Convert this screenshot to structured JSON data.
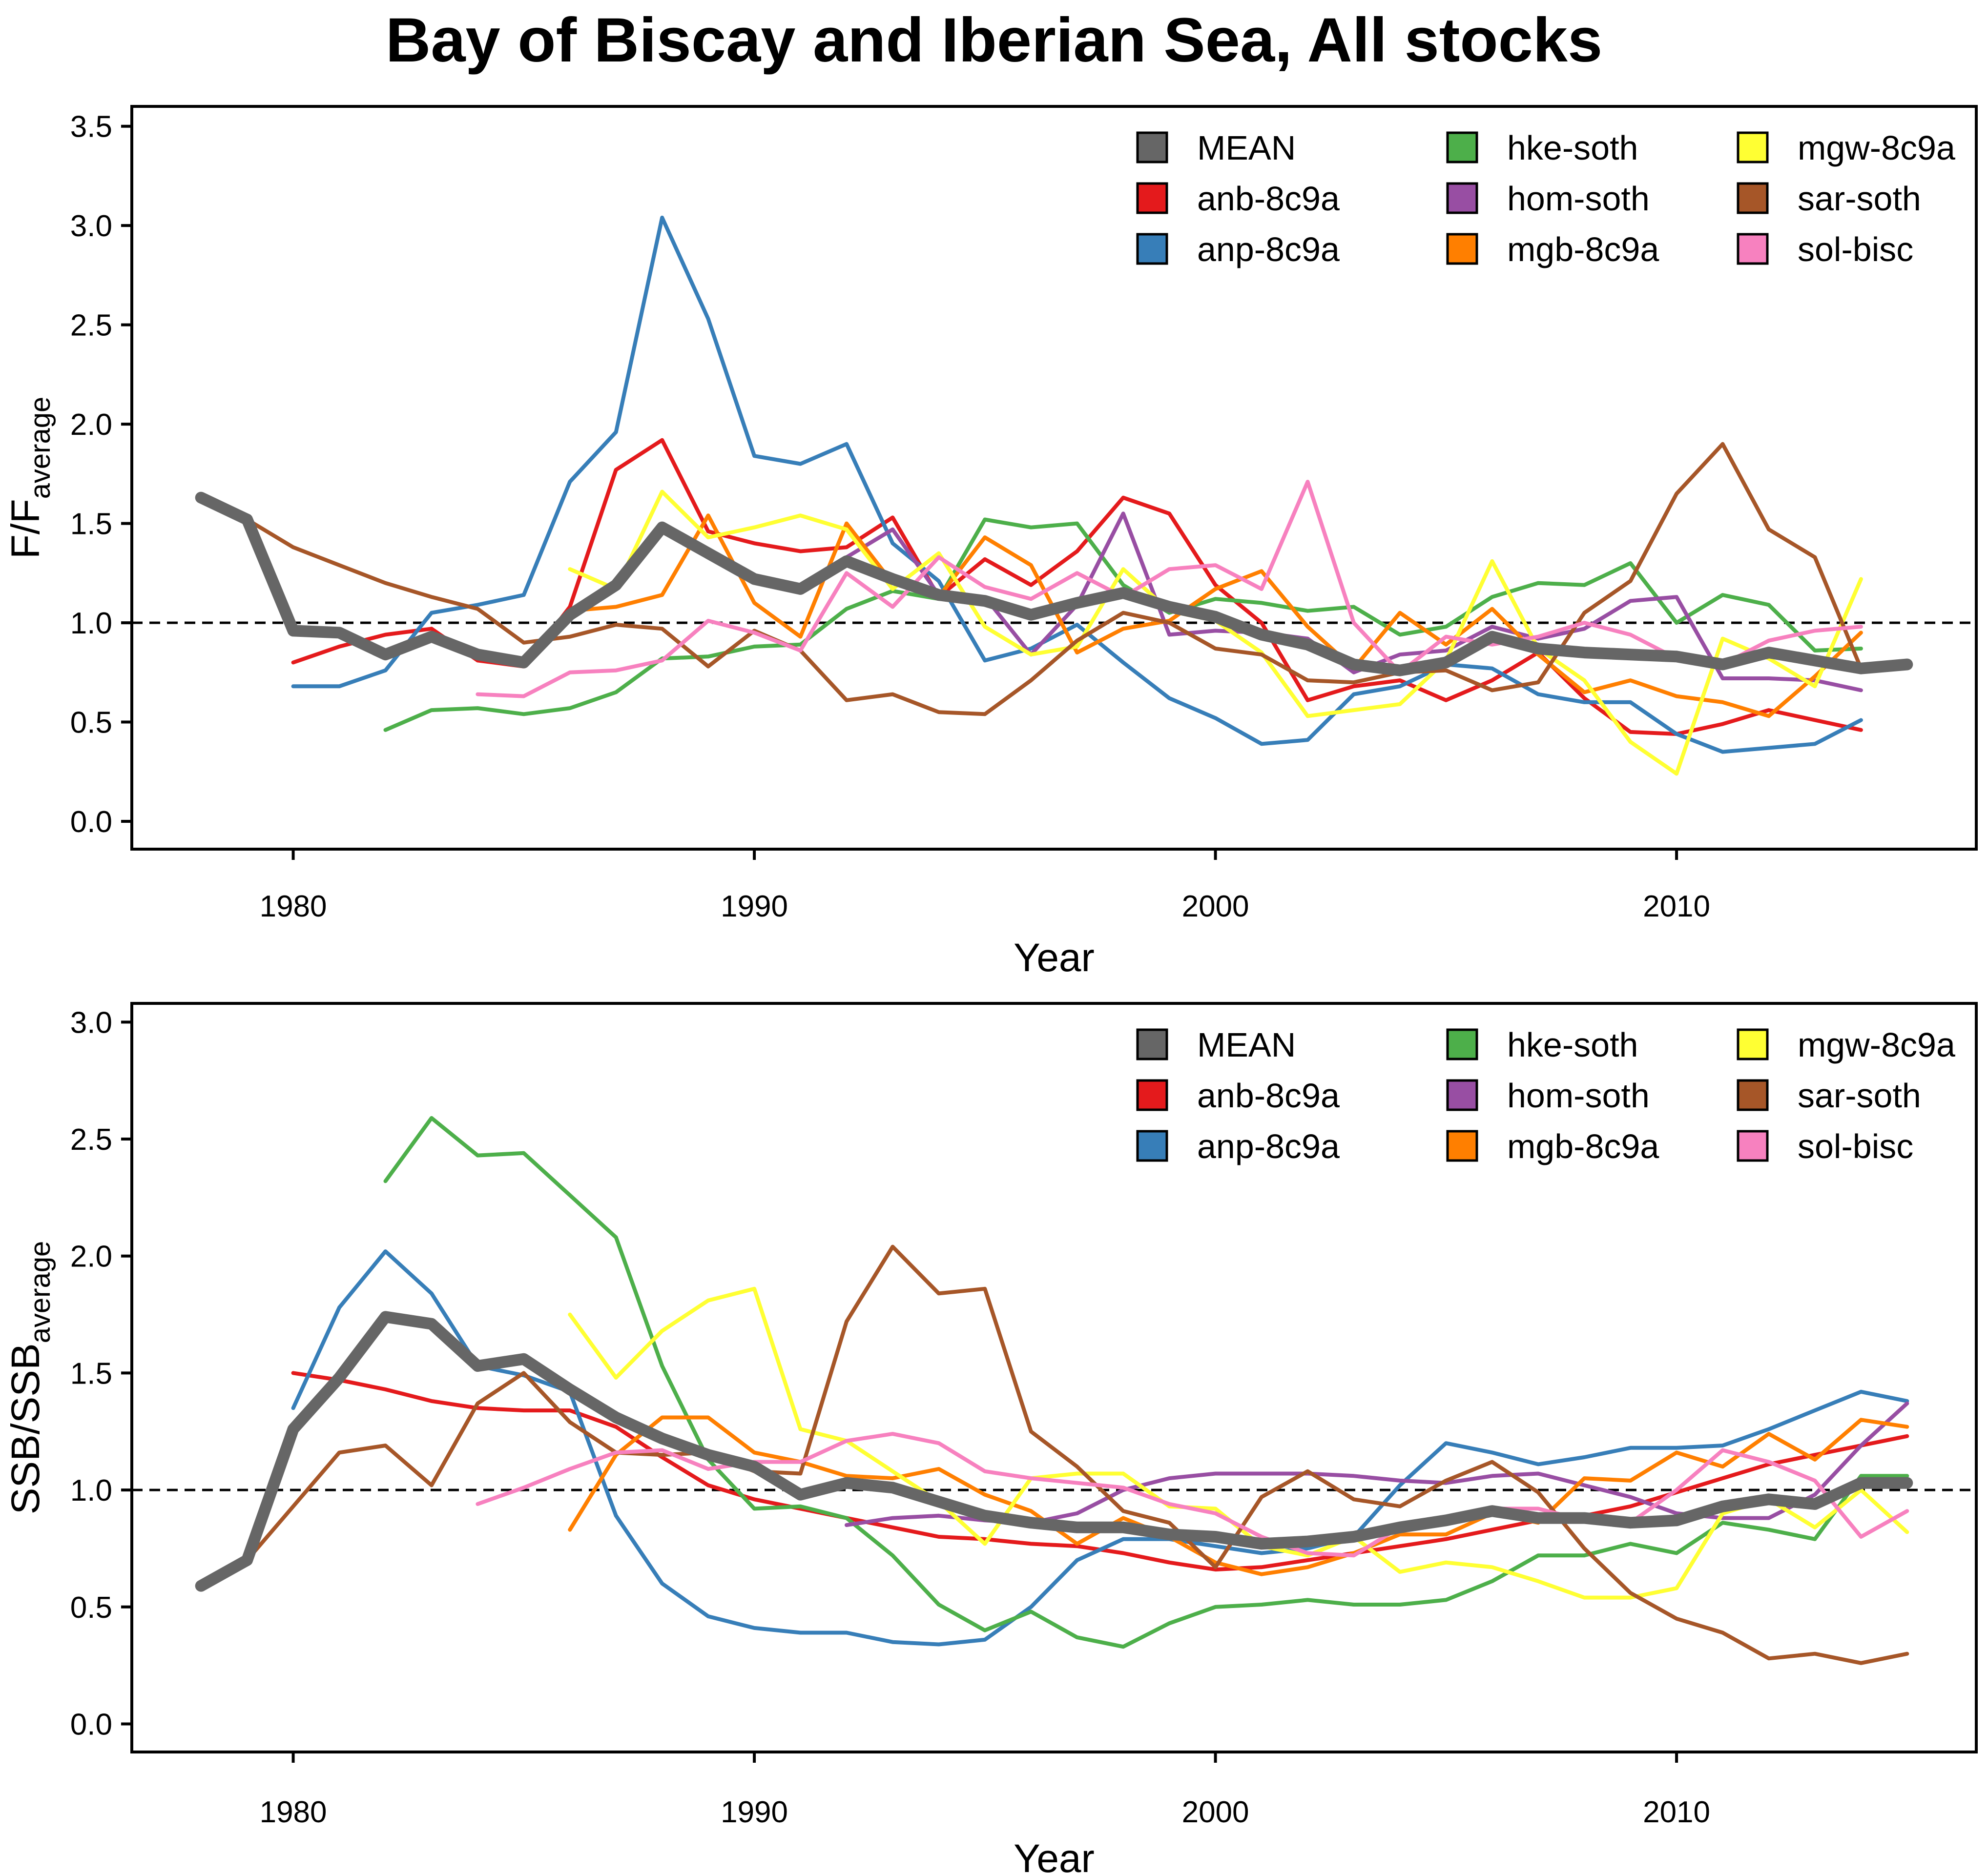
{
  "title": "Bay of Biscay and Iberian Sea, All stocks",
  "chart_data": [
    {
      "type": "line",
      "xlabel": "Year",
      "ylabel_main": "F/F",
      "ylabel_sub": "average",
      "xlim": [
        1976.5,
        2016.5
      ],
      "ylim": [
        -0.14,
        3.6
      ],
      "xticks": [
        1980,
        1990,
        2000,
        2010
      ],
      "yticks": [
        0.0,
        0.5,
        1.0,
        1.5,
        2.0,
        2.5,
        3.0,
        3.5
      ],
      "ytick_labels": [
        "0.0",
        "0.5",
        "1.0",
        "1.5",
        "2.0",
        "2.5",
        "3.0",
        "3.5"
      ],
      "reference_line": 1.0,
      "legend_position": "top-right",
      "series": [
        {
          "name": "anb-8c9a",
          "color": "#e41a1c",
          "x_start": 1980,
          "values": [
            0.8,
            0.88,
            0.94,
            0.97,
            0.81,
            0.78,
            1.08,
            1.77,
            1.92,
            1.46,
            1.4,
            1.36,
            1.38,
            1.53,
            1.13,
            1.32,
            1.19,
            1.36,
            1.63,
            1.55,
            1.19,
            1.0,
            0.61,
            0.68,
            0.71,
            0.61,
            0.71,
            0.85,
            0.62,
            0.45,
            0.44,
            0.49,
            0.56,
            0.51,
            0.46
          ]
        },
        {
          "name": "anp-8c9a",
          "color": "#377eb8",
          "x_start": 1980,
          "values": [
            0.68,
            0.68,
            0.76,
            1.05,
            1.09,
            1.14,
            1.71,
            1.96,
            3.04,
            2.53,
            1.84,
            1.8,
            1.9,
            1.4,
            1.21,
            0.81,
            0.87,
            0.99,
            0.8,
            0.62,
            0.52,
            0.39,
            0.41,
            0.64,
            0.68,
            0.79,
            0.77,
            0.64,
            0.6,
            0.6,
            0.44,
            0.35,
            0.37,
            0.39,
            0.51
          ]
        },
        {
          "name": "hke-soth",
          "color": "#4daf4a",
          "x_start": 1982,
          "values": [
            0.46,
            0.56,
            0.57,
            0.54,
            0.57,
            0.65,
            0.82,
            0.83,
            0.88,
            0.89,
            1.07,
            1.16,
            1.12,
            1.52,
            1.48,
            1.5,
            1.19,
            1.05,
            1.12,
            1.1,
            1.06,
            1.08,
            0.94,
            0.98,
            1.13,
            1.2,
            1.19,
            1.3,
            1.0,
            1.14,
            1.09,
            0.86,
            0.87
          ]
        },
        {
          "name": "hom-soth",
          "color": "#984ea3",
          "x_start": 1992,
          "values": [
            1.33,
            1.47,
            1.14,
            1.13,
            0.84,
            1.09,
            1.55,
            0.94,
            0.96,
            0.95,
            0.92,
            0.75,
            0.84,
            0.86,
            0.98,
            0.92,
            0.97,
            1.11,
            1.13,
            0.72,
            0.72,
            0.71,
            0.66
          ]
        },
        {
          "name": "mgb-8c9a",
          "color": "#ff7f00",
          "x_start": 1986,
          "values": [
            1.06,
            1.08,
            1.14,
            1.54,
            1.1,
            0.93,
            1.5,
            1.2,
            1.13,
            1.43,
            1.29,
            0.85,
            0.97,
            1.01,
            1.17,
            1.26,
            0.98,
            0.77,
            1.05,
            0.89,
            1.07,
            0.84,
            0.65,
            0.71,
            0.63,
            0.6,
            0.53,
            0.73,
            0.95
          ]
        },
        {
          "name": "mgw-8c9a",
          "color": "#ffff33",
          "x_start": 1986,
          "values": [
            1.27,
            1.17,
            1.66,
            1.43,
            1.48,
            1.54,
            1.47,
            1.17,
            1.35,
            0.98,
            0.84,
            0.88,
            1.27,
            1.06,
            1.01,
            0.85,
            0.53,
            0.56,
            0.59,
            0.81,
            1.31,
            0.87,
            0.71,
            0.4,
            0.24,
            0.92,
            0.82,
            0.68,
            1.22
          ]
        },
        {
          "name": "sar-soth",
          "color": "#a65628",
          "x_start": 1978,
          "values": [
            1.63,
            1.52,
            1.38,
            1.29,
            1.2,
            1.13,
            1.07,
            0.9,
            0.93,
            0.99,
            0.97,
            0.78,
            0.96,
            0.86,
            0.61,
            0.64,
            0.55,
            0.54,
            0.71,
            0.91,
            1.05,
            1.0,
            0.87,
            0.84,
            0.71,
            0.7,
            0.75,
            0.76,
            0.66,
            0.7,
            1.05,
            1.21,
            1.65,
            1.9,
            1.47,
            1.33,
            0.77
          ]
        },
        {
          "name": "sol-bisc",
          "color": "#f781bf",
          "x_start": 1984,
          "values": [
            0.64,
            0.63,
            0.75,
            0.76,
            0.81,
            1.01,
            0.95,
            0.86,
            1.25,
            1.08,
            1.33,
            1.18,
            1.12,
            1.25,
            1.13,
            1.27,
            1.29,
            1.17,
            1.71,
            1.0,
            0.75,
            0.93,
            0.89,
            0.93,
            1.0,
            0.94,
            0.82,
            0.79,
            0.91,
            0.96,
            0.98
          ]
        },
        {
          "name": "MEAN",
          "color": "#666666",
          "x_start": 1978,
          "values": [
            1.63,
            1.52,
            0.96,
            0.95,
            0.84,
            0.93,
            0.84,
            0.8,
            1.04,
            1.19,
            1.48,
            1.35,
            1.22,
            1.17,
            1.31,
            1.22,
            1.14,
            1.11,
            1.04,
            1.1,
            1.15,
            1.08,
            1.03,
            0.94,
            0.89,
            0.79,
            0.76,
            0.8,
            0.93,
            0.87,
            0.85,
            0.84,
            0.83,
            0.79,
            0.85,
            0.81,
            0.77,
            0.79
          ]
        }
      ]
    },
    {
      "type": "line",
      "xlabel": "Year",
      "ylabel_main": "SSB/SSB",
      "ylabel_sub": "average",
      "xlim": [
        1976.5,
        2016.5
      ],
      "ylim": [
        -0.12,
        3.08
      ],
      "xticks": [
        1980,
        1990,
        2000,
        2010
      ],
      "yticks": [
        0.0,
        0.5,
        1.0,
        1.5,
        2.0,
        2.5,
        3.0
      ],
      "ytick_labels": [
        "0.0",
        "0.5",
        "1.0",
        "1.5",
        "2.0",
        "2.5",
        "3.0"
      ],
      "reference_line": 1.0,
      "legend_position": "top-right",
      "series": [
        {
          "name": "anb-8c9a",
          "color": "#e41a1c",
          "x_start": 1980,
          "values": [
            1.5,
            1.47,
            1.43,
            1.38,
            1.35,
            1.34,
            1.34,
            1.27,
            1.14,
            1.02,
            0.96,
            0.92,
            0.88,
            0.84,
            0.8,
            0.79,
            0.77,
            0.76,
            0.73,
            0.69,
            0.66,
            0.67,
            0.7,
            0.73,
            0.76,
            0.79,
            0.83,
            0.87,
            0.89,
            0.93,
            0.99,
            1.05,
            1.11,
            1.15,
            1.19,
            1.23
          ]
        },
        {
          "name": "anp-8c9a",
          "color": "#377eb8",
          "x_start": 1980,
          "values": [
            1.35,
            1.78,
            2.02,
            1.84,
            1.53,
            1.49,
            1.42,
            0.89,
            0.6,
            0.46,
            0.41,
            0.39,
            0.39,
            0.35,
            0.34,
            0.36,
            0.5,
            0.7,
            0.79,
            0.79,
            0.76,
            0.73,
            0.75,
            0.8,
            1.02,
            1.2,
            1.16,
            1.11,
            1.14,
            1.18,
            1.18,
            1.19,
            1.26,
            1.34,
            1.42,
            1.38
          ]
        },
        {
          "name": "hke-soth",
          "color": "#4daf4a",
          "x_start": 1982,
          "values": [
            2.32,
            2.59,
            2.43,
            2.44,
            2.26,
            2.08,
            1.53,
            1.13,
            0.92,
            0.93,
            0.88,
            0.72,
            0.51,
            0.4,
            0.48,
            0.37,
            0.33,
            0.43,
            0.5,
            0.51,
            0.53,
            0.51,
            0.51,
            0.53,
            0.61,
            0.72,
            0.72,
            0.77,
            0.73,
            0.86,
            0.83,
            0.79,
            1.06,
            1.06
          ]
        },
        {
          "name": "hom-soth",
          "color": "#984ea3",
          "x_start": 1992,
          "values": [
            0.85,
            0.88,
            0.89,
            0.87,
            0.86,
            0.9,
            1.0,
            1.05,
            1.07,
            1.07,
            1.07,
            1.06,
            1.04,
            1.03,
            1.06,
            1.07,
            1.02,
            0.97,
            0.9,
            0.88,
            0.88,
            0.98,
            1.19,
            1.37
          ]
        },
        {
          "name": "mgb-8c9a",
          "color": "#ff7f00",
          "x_start": 1986,
          "values": [
            0.83,
            1.15,
            1.31,
            1.31,
            1.16,
            1.12,
            1.06,
            1.05,
            1.09,
            0.98,
            0.91,
            0.77,
            0.88,
            0.8,
            0.69,
            0.64,
            0.67,
            0.73,
            0.81,
            0.81,
            0.9,
            0.86,
            1.05,
            1.04,
            1.16,
            1.1,
            1.24,
            1.13,
            1.3,
            1.27
          ]
        },
        {
          "name": "mgw-8c9a",
          "color": "#ffff33",
          "x_start": 1986,
          "values": [
            1.75,
            1.48,
            1.68,
            1.81,
            1.86,
            1.26,
            1.21,
            1.08,
            0.95,
            0.77,
            1.05,
            1.07,
            1.07,
            0.93,
            0.92,
            0.76,
            0.72,
            0.8,
            0.65,
            0.69,
            0.67,
            0.61,
            0.54,
            0.54,
            0.58,
            0.9,
            0.96,
            0.84,
            1.0,
            0.82
          ]
        },
        {
          "name": "sar-soth",
          "color": "#a65628",
          "x_start": 1978,
          "values": [
            0.59,
            0.7,
            0.93,
            1.16,
            1.19,
            1.02,
            1.37,
            1.5,
            1.29,
            1.16,
            1.15,
            1.16,
            1.08,
            1.07,
            1.72,
            2.04,
            1.84,
            1.86,
            1.25,
            1.1,
            0.91,
            0.86,
            0.67,
            0.97,
            1.08,
            0.96,
            0.93,
            1.04,
            1.12,
            0.99,
            0.75,
            0.56,
            0.45,
            0.39,
            0.28,
            0.3,
            0.26,
            0.3
          ]
        },
        {
          "name": "sol-bisc",
          "color": "#f781bf",
          "x_start": 1984,
          "values": [
            0.94,
            1.01,
            1.09,
            1.16,
            1.17,
            1.09,
            1.12,
            1.12,
            1.21,
            1.24,
            1.2,
            1.08,
            1.05,
            1.03,
            1.01,
            0.94,
            0.9,
            0.8,
            0.73,
            0.72,
            0.84,
            0.88,
            0.92,
            0.92,
            0.87,
            0.86,
            1.0,
            1.17,
            1.12,
            1.04,
            0.8,
            0.91
          ]
        },
        {
          "name": "MEAN",
          "color": "#666666",
          "x_start": 1978,
          "values": [
            0.59,
            0.7,
            1.26,
            1.48,
            1.74,
            1.71,
            1.53,
            1.56,
            1.43,
            1.31,
            1.22,
            1.15,
            1.1,
            0.98,
            1.03,
            1.01,
            0.95,
            0.89,
            0.86,
            0.84,
            0.84,
            0.81,
            0.8,
            0.77,
            0.78,
            0.8,
            0.84,
            0.87,
            0.91,
            0.88,
            0.88,
            0.86,
            0.87,
            0.93,
            0.96,
            0.94,
            1.03,
            1.03
          ]
        }
      ]
    }
  ],
  "legend": {
    "columns": [
      [
        "MEAN",
        "anb-8c9a",
        "anp-8c9a"
      ],
      [
        "hke-soth",
        "hom-soth",
        "mgb-8c9a"
      ],
      [
        "mgw-8c9a",
        "sar-soth",
        "sol-bisc"
      ]
    ]
  }
}
